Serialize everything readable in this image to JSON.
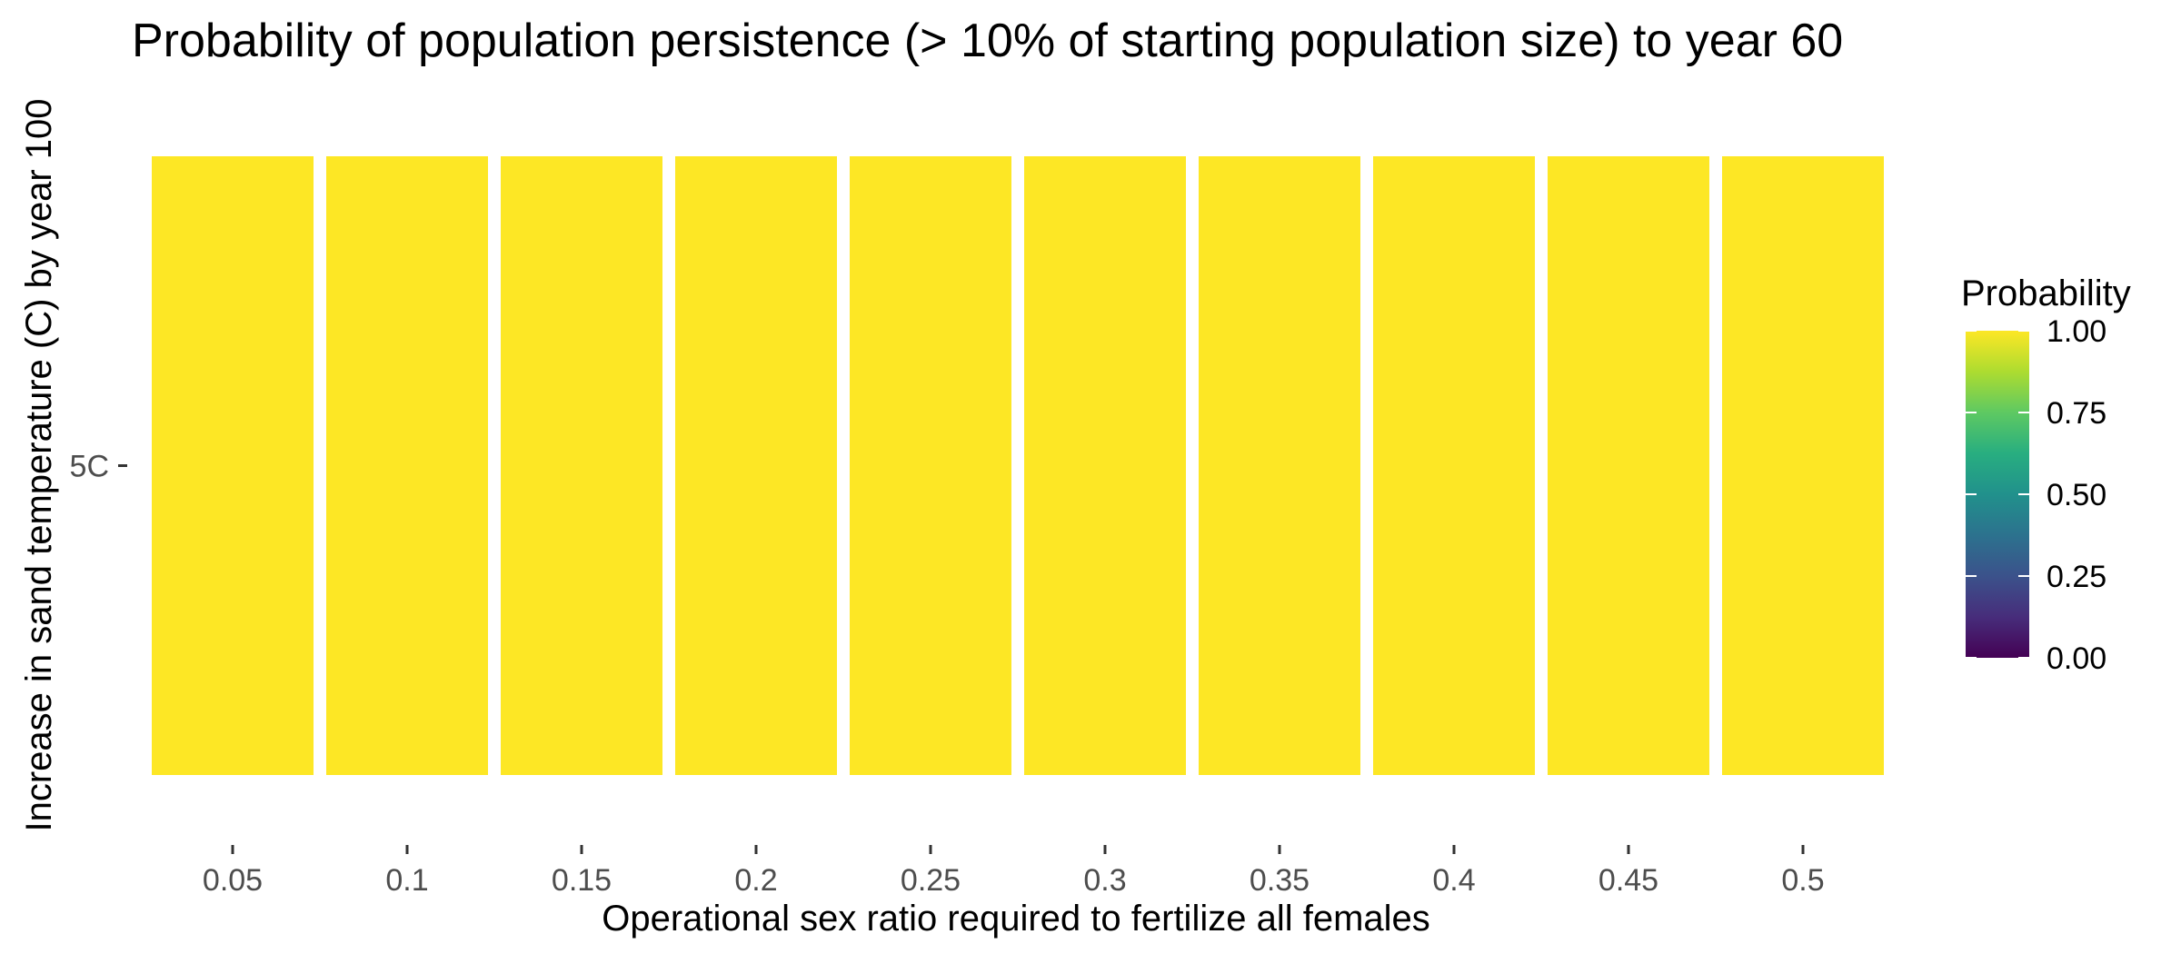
{
  "chart_data": {
    "type": "heatmap",
    "title": "Probability of population persistence (> 10% of starting population size) to year 60",
    "xlabel": "Operational sex ratio required to fertilize all females",
    "ylabel": "Increase in sand temperature (C) by year 100",
    "x_categories": [
      "0.05",
      "0.1",
      "0.15",
      "0.2",
      "0.25",
      "0.3",
      "0.35",
      "0.4",
      "0.45",
      "0.5"
    ],
    "y_categories": [
      "5C"
    ],
    "values": [
      [
        1.0,
        1.0,
        1.0,
        1.0,
        1.0,
        1.0,
        1.0,
        1.0,
        1.0,
        1.0
      ]
    ],
    "colorbar": {
      "title": "Probability",
      "min": 0.0,
      "max": 1.0,
      "ticks": [
        0.0,
        0.25,
        0.5,
        0.75,
        1.0
      ],
      "tick_labels": [
        "0.00",
        "0.25",
        "0.50",
        "0.75",
        "1.00"
      ],
      "colormap": "viridis"
    },
    "legend_position": "right",
    "grid": false
  }
}
